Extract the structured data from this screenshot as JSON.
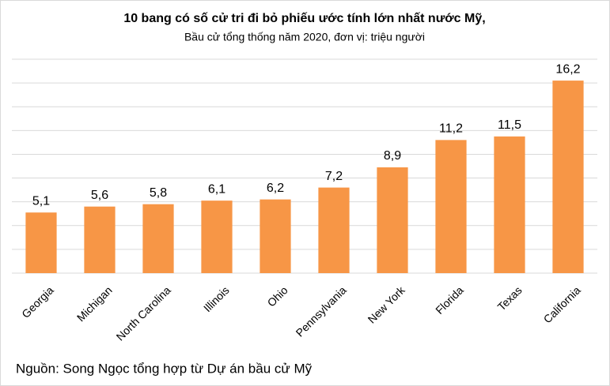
{
  "chart_data": {
    "type": "bar",
    "title": "10 bang có số cử tri đi bỏ phiếu ước tính lớn nhất nước Mỹ,",
    "subtitle": "Bầu cử tổng thống năm 2020, đơn vị: triệu người",
    "categories": [
      "Georgia",
      "Michigan",
      "North Carolina",
      "Illinois",
      "Ohio",
      "Pennsylvania",
      "New York",
      "Florida",
      "Texas",
      "California"
    ],
    "values": [
      5.1,
      5.6,
      5.8,
      6.1,
      6.2,
      7.2,
      8.9,
      11.2,
      11.5,
      16.2
    ],
    "value_labels": [
      "5,1",
      "5,6",
      "5,8",
      "6,1",
      "6,2",
      "7,2",
      "8,9",
      "11,2",
      "11,5",
      "16,2"
    ],
    "color": "#f79646",
    "ylim": [
      0,
      18
    ],
    "yticks": [
      0,
      2,
      4,
      6,
      8,
      10,
      12,
      14,
      16,
      18
    ],
    "grid": true,
    "source": "Nguồn: Song Ngọc tổng hợp từ Dự án bầu cử Mỹ"
  }
}
